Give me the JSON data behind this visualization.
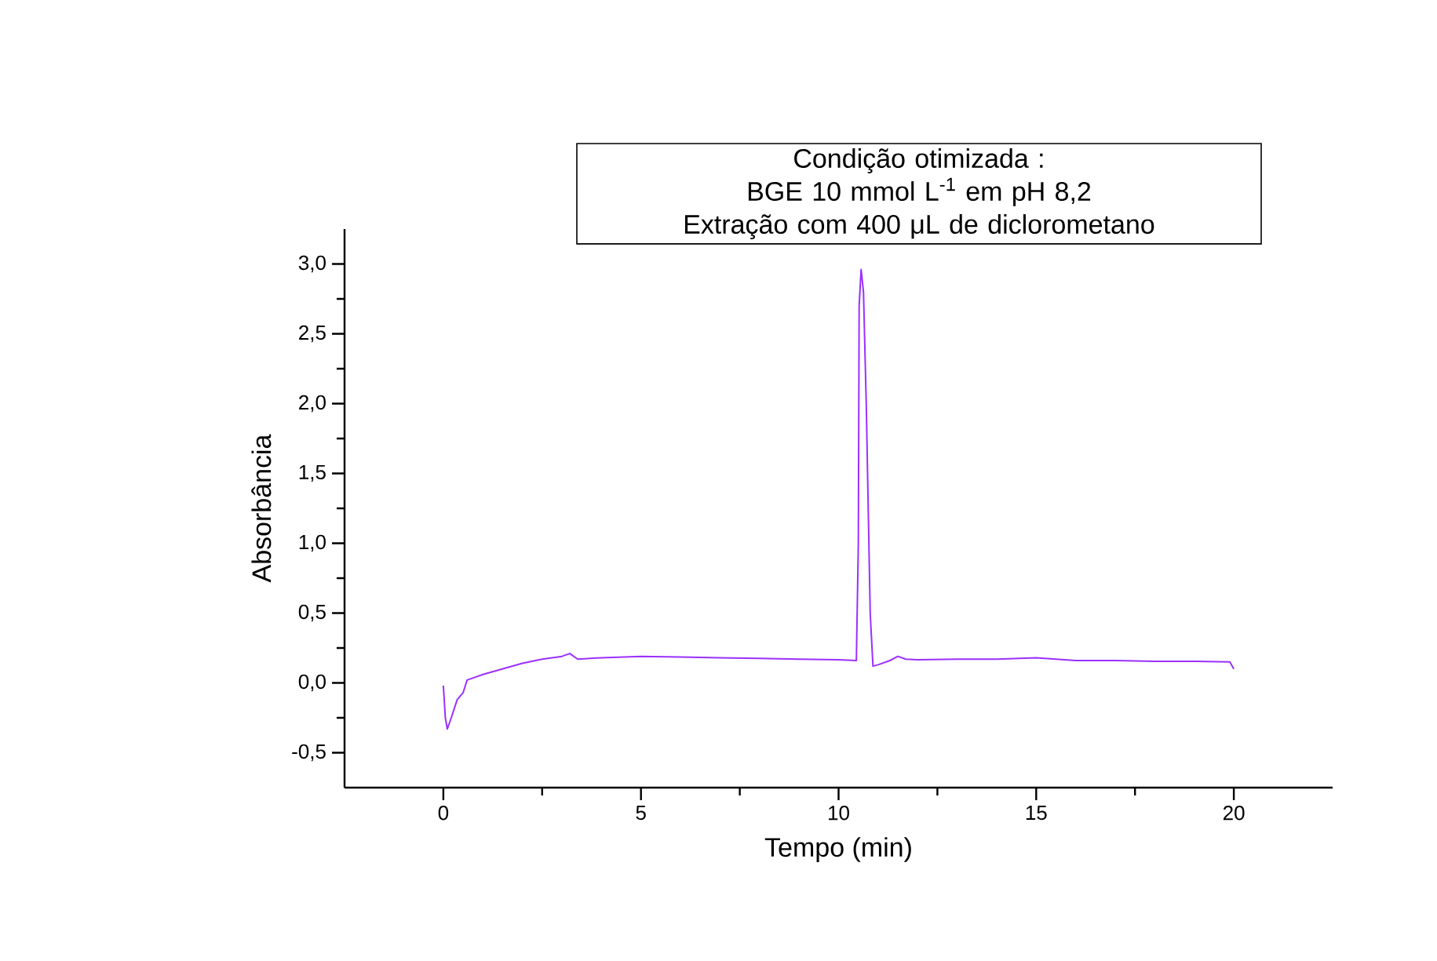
{
  "chart_data": {
    "type": "line",
    "xlabel": "Tempo (min)",
    "ylabel": "Absorbância",
    "annotations": [
      "Condição otimizada :",
      "BGE 10 mmol L$^{-1}$ em pH 8,2",
      "Extração com 400 μL de diclorometano"
    ],
    "x": [
      0,
      0.05,
      0.1,
      0.2,
      0.35,
      0.5,
      0.6,
      0.8,
      1.0,
      1.5,
      2.0,
      2.5,
      3.0,
      3.2,
      3.4,
      4.0,
      5.0,
      6.0,
      7.0,
      8.0,
      9.0,
      10.0,
      10.45,
      10.5,
      10.52,
      10.57,
      10.63,
      10.7,
      10.8,
      10.87,
      11.0,
      11.3,
      11.5,
      11.7,
      12.0,
      13.0,
      14.0,
      15.0,
      16.0,
      17.0,
      18.0,
      19.0,
      19.9,
      20.0
    ],
    "series": [
      {
        "color": "#9b30ff",
        "values": [
          -0.02,
          -0.25,
          -0.33,
          -0.25,
          -0.12,
          -0.07,
          0.02,
          0.04,
          0.06,
          0.1,
          0.14,
          0.17,
          0.19,
          0.21,
          0.17,
          0.18,
          0.19,
          0.185,
          0.18,
          0.175,
          0.17,
          0.165,
          0.16,
          1.0,
          2.7,
          2.96,
          2.8,
          2.0,
          0.5,
          0.12,
          0.13,
          0.16,
          0.19,
          0.17,
          0.165,
          0.17,
          0.17,
          0.18,
          0.16,
          0.16,
          0.155,
          0.155,
          0.15,
          0.1
        ]
      }
    ],
    "xlim": [
      -2.5,
      22.5
    ],
    "ylim": [
      -0.75,
      3.25
    ],
    "xticks": [
      0,
      5,
      10,
      15,
      20
    ],
    "yticks": [
      {
        "value": -0.5,
        "label": "-0,5"
      },
      {
        "value": 0.0,
        "label": "0,0"
      },
      {
        "value": 0.5,
        "label": "0,5"
      },
      {
        "value": 1.0,
        "label": "1,0"
      },
      {
        "value": 1.5,
        "label": "1,5"
      },
      {
        "value": 2.0,
        "label": "2,0"
      },
      {
        "value": 2.5,
        "label": "2,5"
      },
      {
        "value": 3.0,
        "label": "3,0"
      }
    ],
    "grid": false,
    "legend": false,
    "marker": "none",
    "line_style": "solid"
  }
}
